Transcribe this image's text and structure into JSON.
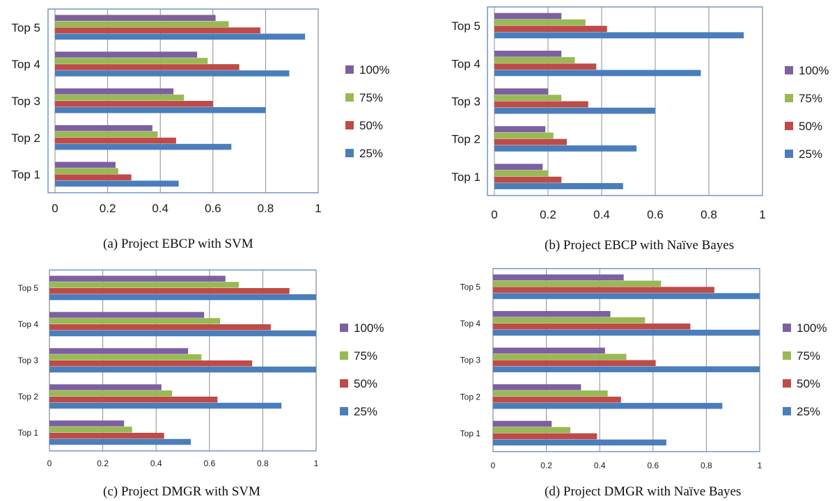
{
  "series_names": [
    "25%",
    "50%",
    "75%",
    "100%"
  ],
  "colors": {
    "25%": "#4a7ebb",
    "50%": "#be4b48",
    "75%": "#98b954",
    "100%": "#7d60a0"
  },
  "chart_data": [
    {
      "type": "bar",
      "orientation": "horizontal",
      "caption": "(a)   Project EBCP with SVM",
      "categories": [
        "Top 1",
        "Top 2",
        "Top 3",
        "Top 4",
        "Top 5"
      ],
      "xlim": [
        0,
        1
      ],
      "xticks": [
        "0",
        "0.2",
        "0.4",
        "0.6",
        "0.8",
        "1"
      ],
      "grid": "vertical",
      "legend_position": "right",
      "series": [
        {
          "name": "25%",
          "values": [
            0.47,
            0.67,
            0.8,
            0.89,
            0.95
          ]
        },
        {
          "name": "50%",
          "values": [
            0.29,
            0.46,
            0.6,
            0.7,
            0.78
          ]
        },
        {
          "name": "75%",
          "values": [
            0.24,
            0.39,
            0.49,
            0.58,
            0.66
          ]
        },
        {
          "name": "100%",
          "values": [
            0.23,
            0.37,
            0.45,
            0.54,
            0.61
          ]
        }
      ]
    },
    {
      "type": "bar",
      "orientation": "horizontal",
      "caption": "(b)   Project EBCP with Naïve Bayes",
      "categories": [
        "Top 1",
        "Top 2",
        "Top 3",
        "Top 4",
        "Top 5"
      ],
      "xlim": [
        0,
        1
      ],
      "xticks": [
        "0",
        "0.2",
        "0.4",
        "0.6",
        "0.8",
        "1"
      ],
      "grid": "vertical",
      "legend_position": "right",
      "series": [
        {
          "name": "25%",
          "values": [
            0.48,
            0.53,
            0.6,
            0.77,
            0.93
          ]
        },
        {
          "name": "50%",
          "values": [
            0.25,
            0.27,
            0.35,
            0.38,
            0.42
          ]
        },
        {
          "name": "75%",
          "values": [
            0.2,
            0.22,
            0.25,
            0.3,
            0.34
          ]
        },
        {
          "name": "100%",
          "values": [
            0.18,
            0.19,
            0.2,
            0.25,
            0.25
          ]
        }
      ]
    },
    {
      "type": "bar",
      "orientation": "horizontal",
      "caption": "(c)   Project DMGR with SVM",
      "categories": [
        "Top 1",
        "Top 2",
        "Top 3",
        "Top 4",
        "Top 5"
      ],
      "xlim": [
        0,
        1
      ],
      "xticks": [
        "0",
        "0.2",
        "0.4",
        "0.6",
        "0.8",
        "1"
      ],
      "grid": "vertical",
      "legend_position": "right",
      "series": [
        {
          "name": "25%",
          "values": [
            0.53,
            0.87,
            1.0,
            1.0,
            1.0
          ]
        },
        {
          "name": "50%",
          "values": [
            0.43,
            0.63,
            0.76,
            0.83,
            0.9
          ]
        },
        {
          "name": "75%",
          "values": [
            0.31,
            0.46,
            0.57,
            0.64,
            0.71
          ]
        },
        {
          "name": "100%",
          "values": [
            0.28,
            0.42,
            0.52,
            0.58,
            0.66
          ]
        }
      ]
    },
    {
      "type": "bar",
      "orientation": "horizontal",
      "caption": "(d)   Project DMGR with Naïve Bayes",
      "categories": [
        "Top 1",
        "Top 2",
        "Top 3",
        "Top 4",
        "Top 5"
      ],
      "xlim": [
        0,
        1
      ],
      "xticks": [
        "0",
        "0.2",
        "0.4",
        "0.6",
        "0.8",
        "1"
      ],
      "grid": "vertical",
      "legend_position": "right",
      "series": [
        {
          "name": "25%",
          "values": [
            0.65,
            0.86,
            1.0,
            1.0,
            1.0
          ]
        },
        {
          "name": "50%",
          "values": [
            0.39,
            0.48,
            0.61,
            0.74,
            0.83
          ]
        },
        {
          "name": "75%",
          "values": [
            0.29,
            0.43,
            0.5,
            0.57,
            0.63
          ]
        },
        {
          "name": "100%",
          "values": [
            0.22,
            0.33,
            0.42,
            0.44,
            0.49
          ]
        }
      ]
    }
  ]
}
